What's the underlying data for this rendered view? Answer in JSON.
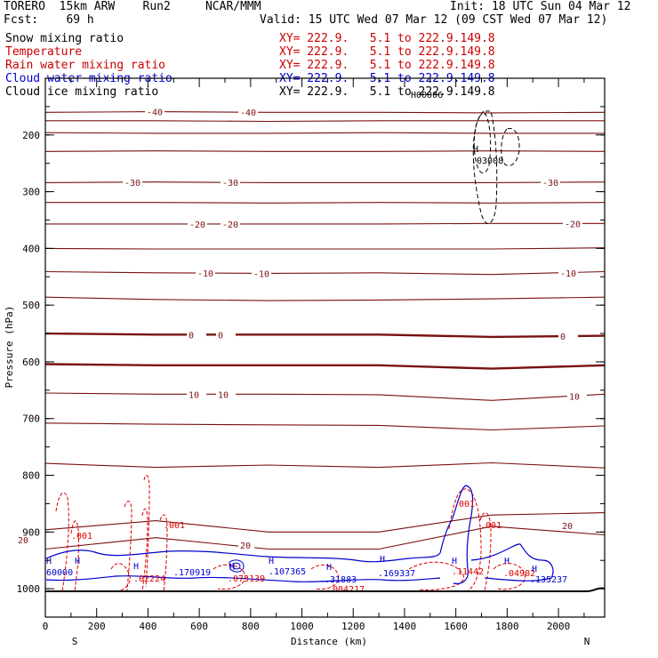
{
  "header": {
    "model": "TORERO  15km ARW    Run2     NCAR/MMM",
    "init": "Init: 18 UTC Sun 04 Mar 12",
    "fcst": "Fcst:    69 h",
    "valid": "Valid: 15 UTC Wed 07 Mar 12 (09 CST Wed 07 Mar 12)"
  },
  "legend": [
    {
      "name": "Snow mixing ratio",
      "range": "",
      "color": "#000000"
    },
    {
      "name": "Temperature",
      "range": "XY= 222.9.   5.1 to 222.9.149.8",
      "color": "#cc0000"
    },
    {
      "name": "Rain water mixing ratio",
      "range": "XY= 222.9.   5.1 to 222.9.149.8",
      "color": "#cc0000"
    },
    {
      "name": "Cloud water mixing ratio",
      "range": "XY= 222.9.   5.1 to 222.9.149.8",
      "color": "#0000cc"
    },
    {
      "name": "Cloud ice mixing ratio",
      "range": "XY= 222.9.   5.1 to 222.9.149.8",
      "color": "#000000"
    }
  ],
  "legend_extra_range": "XY= 222.9.   5.1 to 222.9.149.8",
  "axes": {
    "xlabel": "Distance (km)",
    "ylabel": "Pressure (hPa)",
    "left_end": "S",
    "right_end": "N",
    "xticks": [
      "0",
      "200",
      "400",
      "600",
      "800",
      "1000",
      "1200",
      "1400",
      "1600",
      "1800",
      "2000"
    ],
    "yticks": [
      "200",
      "300",
      "400",
      "500",
      "600",
      "700",
      "800",
      "900",
      "1000"
    ]
  },
  "colors": {
    "temperature": "#7a1010",
    "rain": "#dd0000",
    "cloud_water": "#0000cc",
    "cloud_ice": "#000000",
    "axis": "#000000"
  },
  "chart_data": {
    "type": "line",
    "title": "",
    "xlabel": "Distance (km)",
    "ylabel": "Pressure (hPa)",
    "xlim": [
      0,
      2180
    ],
    "ylim": [
      1050,
      100
    ],
    "yscale": "linear-inverted",
    "temperature_isotherms": [
      {
        "label": "-40",
        "p": [
          160,
          159,
          160,
          160,
          161,
          160
        ]
      },
      {
        "label": "-40",
        "p": [
          175,
          175,
          176,
          175,
          175,
          175
        ]
      },
      {
        "label": "-40",
        "p": [
          196,
          197,
          197,
          196,
          197,
          197
        ]
      },
      {
        "label": "-40",
        "p": [
          229,
          228,
          229,
          229,
          228,
          229
        ]
      },
      {
        "label": "-30",
        "p": [
          284,
          283,
          284,
          284,
          284,
          283
        ]
      },
      {
        "label": "-30",
        "p": [
          319,
          319,
          320,
          319,
          320,
          319
        ]
      },
      {
        "label": "-20",
        "p": [
          357,
          357,
          357,
          357,
          356,
          356
        ]
      },
      {
        "label": "-20",
        "p": [
          400,
          401,
          401,
          401,
          401,
          399
        ]
      },
      {
        "label": "-10",
        "p": [
          441,
          443,
          444,
          443,
          446,
          441
        ]
      },
      {
        "label": "-10",
        "p": [
          486,
          490,
          492,
          491,
          489,
          486
        ]
      },
      {
        "label": "0",
        "p": [
          550,
          552,
          552,
          552,
          556,
          554
        ]
      },
      {
        "label": "0",
        "p": [
          604,
          606,
          606,
          606,
          612,
          606
        ]
      },
      {
        "label": "10",
        "p": [
          655,
          657,
          657,
          658,
          668,
          657
        ]
      },
      {
        "label": "10",
        "p": [
          708,
          710,
          711,
          712,
          720,
          713
        ]
      },
      {
        "label": "10",
        "p": [
          779,
          786,
          782,
          786,
          778,
          787
        ]
      },
      {
        "label": "20",
        "p": [
          896,
          880,
          900,
          900,
          870,
          866
        ]
      },
      {
        "label": "20",
        "p": [
          930,
          910,
          930,
          930,
          890,
          905
        ]
      }
    ],
    "isotherm_x": [
      0,
      430,
      870,
      1300,
      1740,
      2180
    ],
    "labels": {
      "cloud_ice_max": ".03008",
      "cloud_ice_top": "H00006",
      "rain": [
        ".001",
        ".001",
        ".001",
        ".001"
      ],
      "rain_maxima": [
        ".02224",
        ".073139",
        ".004217",
        ".11442",
        ".04902"
      ],
      "cloud_water_maxima": [
        "60000",
        ".170919",
        ".107365",
        ".31883",
        ".169337",
        ".135237"
      ]
    }
  }
}
